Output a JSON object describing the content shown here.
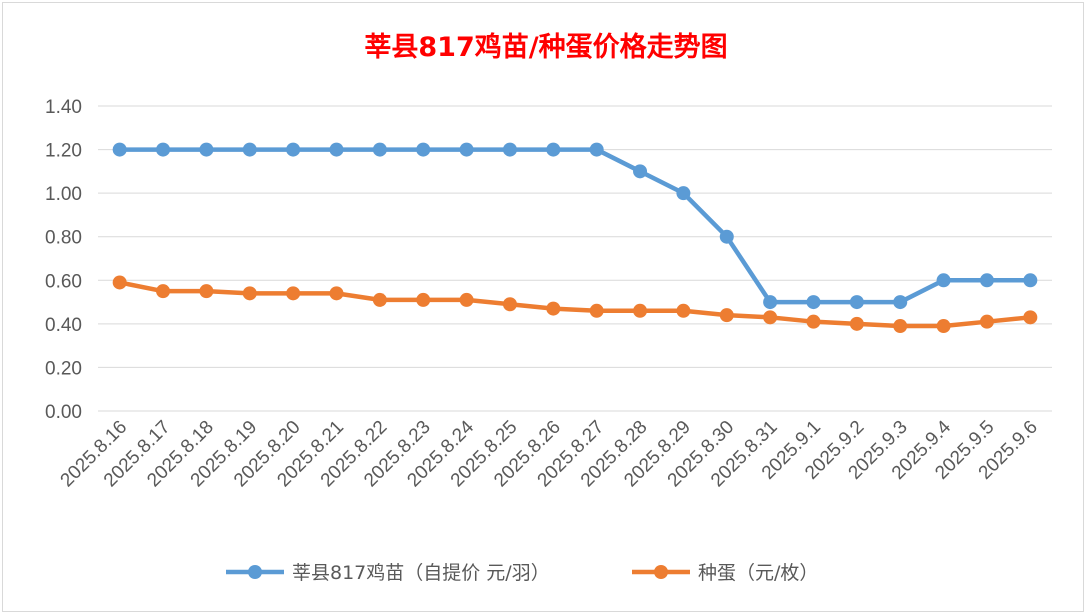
{
  "chart_data": {
    "type": "line",
    "title": "莘县817鸡苗/种蛋价格走势图",
    "xlabel": "",
    "ylabel": "",
    "ylim": [
      0,
      1.4
    ],
    "yticks": [
      "0.00",
      "0.20",
      "0.40",
      "0.60",
      "0.80",
      "1.00",
      "1.20",
      "1.40"
    ],
    "grid": true,
    "legend_position": "bottom",
    "categories": [
      "2025.8.16",
      "2025.8.17",
      "2025.8.18",
      "2025.8.19",
      "2025.8.20",
      "2025.8.21",
      "2025.8.22",
      "2025.8.23",
      "2025.8.24",
      "2025.8.25",
      "2025.8.26",
      "2025.8.27",
      "2025.8.28",
      "2025.8.29",
      "2025.8.30",
      "2025.8.31",
      "2025.9.1",
      "2025.9.2",
      "2025.9.3",
      "2025.9.4",
      "2025.9.5",
      "2025.9.6"
    ],
    "series": [
      {
        "name": "莘县817鸡苗（自提价 元/羽）",
        "color": "#5b9bd5",
        "values": [
          1.2,
          1.2,
          1.2,
          1.2,
          1.2,
          1.2,
          1.2,
          1.2,
          1.2,
          1.2,
          1.2,
          1.2,
          1.1,
          1.0,
          0.8,
          0.5,
          0.5,
          0.5,
          0.5,
          0.6,
          0.6,
          0.6
        ]
      },
      {
        "name": "种蛋（元/枚）",
        "color": "#ed7d31",
        "values": [
          0.59,
          0.55,
          0.55,
          0.54,
          0.54,
          0.54,
          0.51,
          0.51,
          0.51,
          0.49,
          0.47,
          0.46,
          0.46,
          0.46,
          0.44,
          0.43,
          0.41,
          0.4,
          0.39,
          0.39,
          0.41,
          0.43
        ]
      }
    ]
  }
}
